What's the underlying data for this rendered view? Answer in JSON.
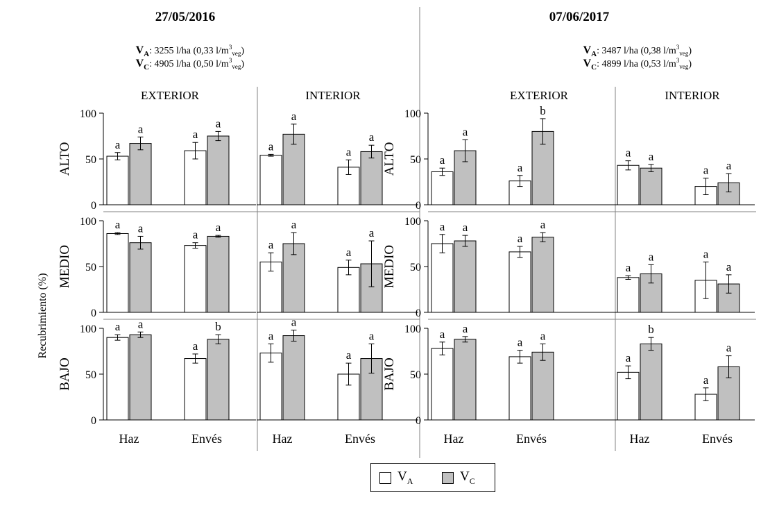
{
  "colors": {
    "va": "#ffffff",
    "vc": "#c0c0c0",
    "stroke": "#000000",
    "divider": "#808080"
  },
  "y_axis_label": "Recubrimiento (%)",
  "legend": [
    {
      "key": "va",
      "base": "V",
      "sub": "A"
    },
    {
      "key": "vc",
      "base": "V",
      "sub": "C"
    }
  ],
  "chart_data": {
    "type": "bar",
    "ylabel": "Recubrimiento (%)",
    "ylim": [
      0,
      100
    ],
    "yticks": [
      0,
      50,
      100
    ],
    "categories": [
      "Haz",
      "Envés"
    ],
    "series_names": [
      "VA",
      "VC"
    ],
    "legend_position": "bottom-center",
    "levels": [
      "ALTO",
      "MEDIO",
      "BAJO"
    ],
    "dates": [
      {
        "title": "27/05/2016",
        "dose_lines": [
          {
            "name": "V",
            "sub": "A",
            "text": ": 3255 l/ha (0,33 l/m",
            "sup": "3",
            "veg": "veg",
            "close": ")"
          },
          {
            "name": "V",
            "sub": "C",
            "text": ": 4905 l/ha (0,50 l/m",
            "sup": "3",
            "veg": "veg",
            "close": ")"
          }
        ],
        "regions": [
          {
            "name": "EXTERIOR",
            "panels": [
              {
                "level": "ALTO",
                "bars": [
                  {
                    "category": "Haz",
                    "series": "VA",
                    "value": 53,
                    "error": 4,
                    "letter": "a"
                  },
                  {
                    "category": "Haz",
                    "series": "VC",
                    "value": 67,
                    "error": 7,
                    "letter": "a"
                  },
                  {
                    "category": "Envés",
                    "series": "VA",
                    "value": 59,
                    "error": 9,
                    "letter": "a"
                  },
                  {
                    "category": "Envés",
                    "series": "VC",
                    "value": 75,
                    "error": 5,
                    "letter": "a"
                  }
                ]
              },
              {
                "level": "MEDIO",
                "bars": [
                  {
                    "category": "Haz",
                    "series": "VA",
                    "value": 86,
                    "error": 1,
                    "letter": "a"
                  },
                  {
                    "category": "Haz",
                    "series": "VC",
                    "value": 76,
                    "error": 7,
                    "letter": "a"
                  },
                  {
                    "category": "Envés",
                    "series": "VA",
                    "value": 73,
                    "error": 3,
                    "letter": "a"
                  },
                  {
                    "category": "Envés",
                    "series": "VC",
                    "value": 83,
                    "error": 1,
                    "letter": "a"
                  }
                ]
              },
              {
                "level": "BAJO",
                "bars": [
                  {
                    "category": "Haz",
                    "series": "VA",
                    "value": 90,
                    "error": 3,
                    "letter": "a"
                  },
                  {
                    "category": "Haz",
                    "series": "VC",
                    "value": 93,
                    "error": 3,
                    "letter": "a"
                  },
                  {
                    "category": "Envés",
                    "series": "VA",
                    "value": 67,
                    "error": 5,
                    "letter": "a"
                  },
                  {
                    "category": "Envés",
                    "series": "VC",
                    "value": 88,
                    "error": 5,
                    "letter": "b"
                  }
                ]
              }
            ]
          },
          {
            "name": "INTERIOR",
            "panels": [
              {
                "level": "ALTO",
                "bars": [
                  {
                    "category": "Haz",
                    "series": "VA",
                    "value": 54,
                    "error": 1,
                    "letter": "a"
                  },
                  {
                    "category": "Haz",
                    "series": "VC",
                    "value": 77,
                    "error": 11,
                    "letter": "a"
                  },
                  {
                    "category": "Envés",
                    "series": "VA",
                    "value": 41,
                    "error": 8,
                    "letter": "a"
                  },
                  {
                    "category": "Envés",
                    "series": "VC",
                    "value": 58,
                    "error": 7,
                    "letter": "a"
                  }
                ]
              },
              {
                "level": "MEDIO",
                "bars": [
                  {
                    "category": "Haz",
                    "series": "VA",
                    "value": 55,
                    "error": 10,
                    "letter": "a"
                  },
                  {
                    "category": "Haz",
                    "series": "VC",
                    "value": 75,
                    "error": 12,
                    "letter": "a"
                  },
                  {
                    "category": "Envés",
                    "series": "VA",
                    "value": 49,
                    "error": 8,
                    "letter": "a"
                  },
                  {
                    "category": "Envés",
                    "series": "VC",
                    "value": 53,
                    "error": 25,
                    "letter": "a"
                  }
                ]
              },
              {
                "level": "BAJO",
                "bars": [
                  {
                    "category": "Haz",
                    "series": "VA",
                    "value": 73,
                    "error": 10,
                    "letter": "a"
                  },
                  {
                    "category": "Haz",
                    "series": "VC",
                    "value": 92,
                    "error": 6,
                    "letter": "a"
                  },
                  {
                    "category": "Envés",
                    "series": "VA",
                    "value": 50,
                    "error": 12,
                    "letter": "a"
                  },
                  {
                    "category": "Envés",
                    "series": "VC",
                    "value": 67,
                    "error": 16,
                    "letter": "a"
                  }
                ]
              }
            ]
          }
        ]
      },
      {
        "title": "07/06/2017",
        "dose_lines": [
          {
            "name": "V",
            "sub": "A",
            "text": ": 3487 l/ha (0,38 l/m",
            "sup": "3",
            "veg": "veg",
            "close": ")"
          },
          {
            "name": "V",
            "sub": "C",
            "text": ": 4899 l/ha (0,53 l/m",
            "sup": "3",
            "veg": "veg",
            "close": ")"
          }
        ],
        "regions": [
          {
            "name": "EXTERIOR",
            "panels": [
              {
                "level": "ALTO",
                "bars": [
                  {
                    "category": "Haz",
                    "series": "VA",
                    "value": 36,
                    "error": 4,
                    "letter": "a"
                  },
                  {
                    "category": "Haz",
                    "series": "VC",
                    "value": 59,
                    "error": 12,
                    "letter": "a"
                  },
                  {
                    "category": "Envés",
                    "series": "VA",
                    "value": 26,
                    "error": 6,
                    "letter": "a"
                  },
                  {
                    "category": "Envés",
                    "series": "VC",
                    "value": 80,
                    "error": 14,
                    "letter": "b"
                  }
                ]
              },
              {
                "level": "MEDIO",
                "bars": [
                  {
                    "category": "Haz",
                    "series": "VA",
                    "value": 75,
                    "error": 10,
                    "letter": "a"
                  },
                  {
                    "category": "Haz",
                    "series": "VC",
                    "value": 78,
                    "error": 6,
                    "letter": "a"
                  },
                  {
                    "category": "Envés",
                    "series": "VA",
                    "value": 66,
                    "error": 6,
                    "letter": "a"
                  },
                  {
                    "category": "Envés",
                    "series": "VC",
                    "value": 82,
                    "error": 5,
                    "letter": "a"
                  }
                ]
              },
              {
                "level": "BAJO",
                "bars": [
                  {
                    "category": "Haz",
                    "series": "VA",
                    "value": 78,
                    "error": 7,
                    "letter": "a"
                  },
                  {
                    "category": "Haz",
                    "series": "VC",
                    "value": 88,
                    "error": 3,
                    "letter": "a"
                  },
                  {
                    "category": "Envés",
                    "series": "VA",
                    "value": 69,
                    "error": 7,
                    "letter": "a"
                  },
                  {
                    "category": "Envés",
                    "series": "VC",
                    "value": 74,
                    "error": 9,
                    "letter": "a"
                  }
                ]
              }
            ]
          },
          {
            "name": "INTERIOR",
            "panels": [
              {
                "level": "ALTO",
                "bars": [
                  {
                    "category": "Haz",
                    "series": "VA",
                    "value": 43,
                    "error": 5,
                    "letter": "a"
                  },
                  {
                    "category": "Haz",
                    "series": "VC",
                    "value": 40,
                    "error": 4,
                    "letter": "a"
                  },
                  {
                    "category": "Envés",
                    "series": "VA",
                    "value": 20,
                    "error": 9,
                    "letter": "a"
                  },
                  {
                    "category": "Envés",
                    "series": "VC",
                    "value": 24,
                    "error": 10,
                    "letter": "a"
                  }
                ]
              },
              {
                "level": "MEDIO",
                "bars": [
                  {
                    "category": "Haz",
                    "series": "VA",
                    "value": 38,
                    "error": 2,
                    "letter": "a"
                  },
                  {
                    "category": "Haz",
                    "series": "VC",
                    "value": 42,
                    "error": 10,
                    "letter": "a"
                  },
                  {
                    "category": "Envés",
                    "series": "VA",
                    "value": 35,
                    "error": 20,
                    "letter": "a"
                  },
                  {
                    "category": "Envés",
                    "series": "VC",
                    "value": 31,
                    "error": 10,
                    "letter": "a"
                  }
                ]
              },
              {
                "level": "BAJO",
                "bars": [
                  {
                    "category": "Haz",
                    "series": "VA",
                    "value": 52,
                    "error": 7,
                    "letter": "a"
                  },
                  {
                    "category": "Haz",
                    "series": "VC",
                    "value": 83,
                    "error": 7,
                    "letter": "b"
                  },
                  {
                    "category": "Envés",
                    "series": "VA",
                    "value": 28,
                    "error": 7,
                    "letter": "a"
                  },
                  {
                    "category": "Envés",
                    "series": "VC",
                    "value": 58,
                    "error": 12,
                    "letter": "a"
                  }
                ]
              }
            ]
          }
        ]
      }
    ]
  }
}
